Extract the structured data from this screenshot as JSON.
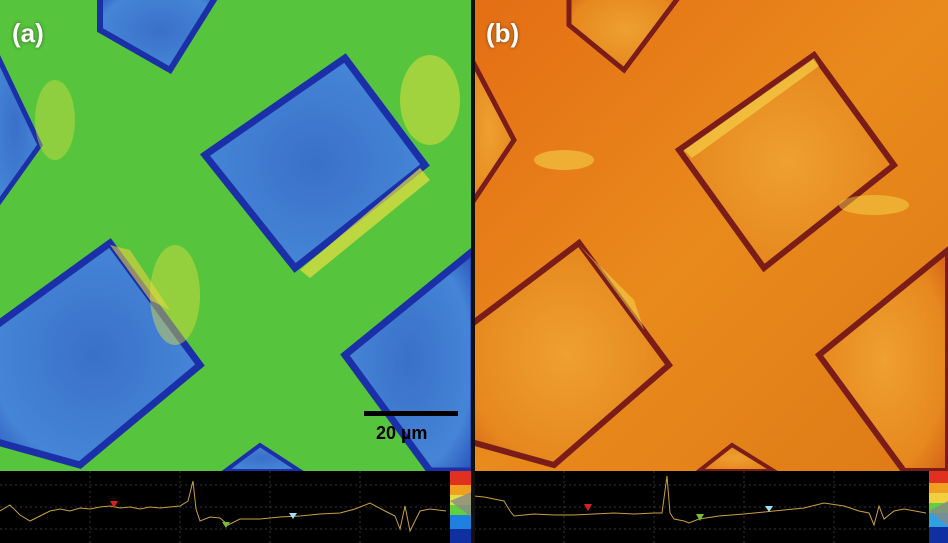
{
  "panels": [
    {
      "label": "(a)",
      "colormap": "rainbow-jet"
    },
    {
      "label": "(b)",
      "colormap": "orange-heat"
    }
  ],
  "scale_bar": {
    "label": "20 µm"
  },
  "colors": {
    "a_background": "#56c43c",
    "a_square": "#3f7fd0",
    "a_edge": "#1a2fa8",
    "b_background": "#e07b18",
    "b_square": "#e88e22",
    "b_edge": "#7a1c18",
    "profile_line": "#c8a040",
    "marker_red": "#d82020",
    "marker_green": "#70c030",
    "marker_cyan": "#a0e0f0"
  }
}
